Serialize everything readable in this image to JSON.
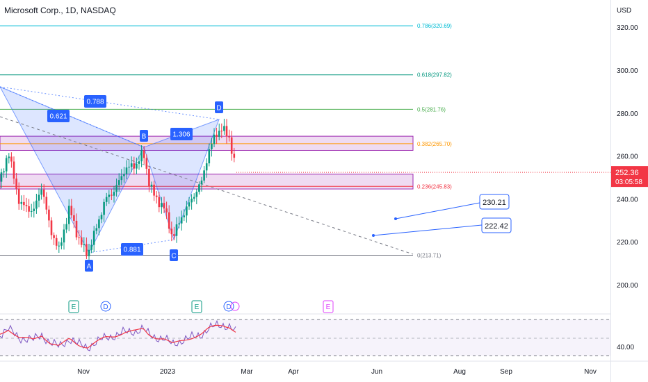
{
  "header": {
    "title": "Microsoft Corp., 1D, NASDAQ",
    "currency": "USD"
  },
  "price_axis": {
    "ticks": [
      "320.00",
      "300.00",
      "280.00",
      "260.00",
      "240.00",
      "220.00",
      "200.00"
    ],
    "current_price": "252.36",
    "countdown": "03:05:58",
    "rsi_tick": "40.00"
  },
  "time_axis": {
    "labels": [
      "Nov",
      "2023",
      "Mar",
      "Apr",
      "Jun",
      "Aug",
      "Sep",
      "Nov"
    ]
  },
  "fib_levels": [
    {
      "label": "0.786(320.69)",
      "ratio": 0.786,
      "price": 320.69,
      "color": "#00bcd4"
    },
    {
      "label": "0.618(297.82)",
      "ratio": 0.618,
      "price": 297.82,
      "color": "#089981"
    },
    {
      "label": "0.5(281.76)",
      "ratio": 0.5,
      "price": 281.76,
      "color": "#4caf50"
    },
    {
      "label": "0.382(265.70)",
      "ratio": 0.382,
      "price": 265.7,
      "color": "#ff9800"
    },
    {
      "label": "0.236(245.83)",
      "ratio": 0.236,
      "price": 245.83,
      "color": "#f23645"
    },
    {
      "label": "0(213.71)",
      "ratio": 0,
      "price": 213.71,
      "color": "#787b86"
    }
  ],
  "pattern": {
    "points": [
      "A",
      "B",
      "C",
      "D"
    ],
    "ratios": [
      "0.621",
      "0.788",
      "1.306",
      "0.881"
    ]
  },
  "targets": [
    "230.21",
    "222.42"
  ],
  "events": [
    "E",
    "D",
    "E",
    "D",
    "E"
  ],
  "colors": {
    "up": "#089981",
    "down": "#f23645",
    "accent": "#2962ff",
    "zone": "#e1bee7",
    "rsi": "#7e57c2"
  },
  "chart_data": {
    "type": "candlestick",
    "symbol": "MSFT",
    "interval": "1D",
    "ylim": [
      185,
      330
    ],
    "close_series_approx": [
      {
        "x": "2022-10-03",
        "y": 250
      },
      {
        "x": "2022-10-12",
        "y": 228
      },
      {
        "x": "2022-10-24",
        "y": 245
      },
      {
        "x": "2022-11-03",
        "y": 214
      },
      {
        "x": "2022-11-15",
        "y": 241
      },
      {
        "x": "2022-11-30",
        "y": 255
      },
      {
        "x": "2022-12-12",
        "y": 256
      },
      {
        "x": "2022-12-20",
        "y": 242
      },
      {
        "x": "2023-01-05",
        "y": 222
      },
      {
        "x": "2023-01-19",
        "y": 235
      },
      {
        "x": "2023-01-26",
        "y": 248
      },
      {
        "x": "2023-02-07",
        "y": 270
      },
      {
        "x": "2023-02-13",
        "y": 271
      },
      {
        "x": "2023-02-22",
        "y": 252.36
      }
    ]
  }
}
